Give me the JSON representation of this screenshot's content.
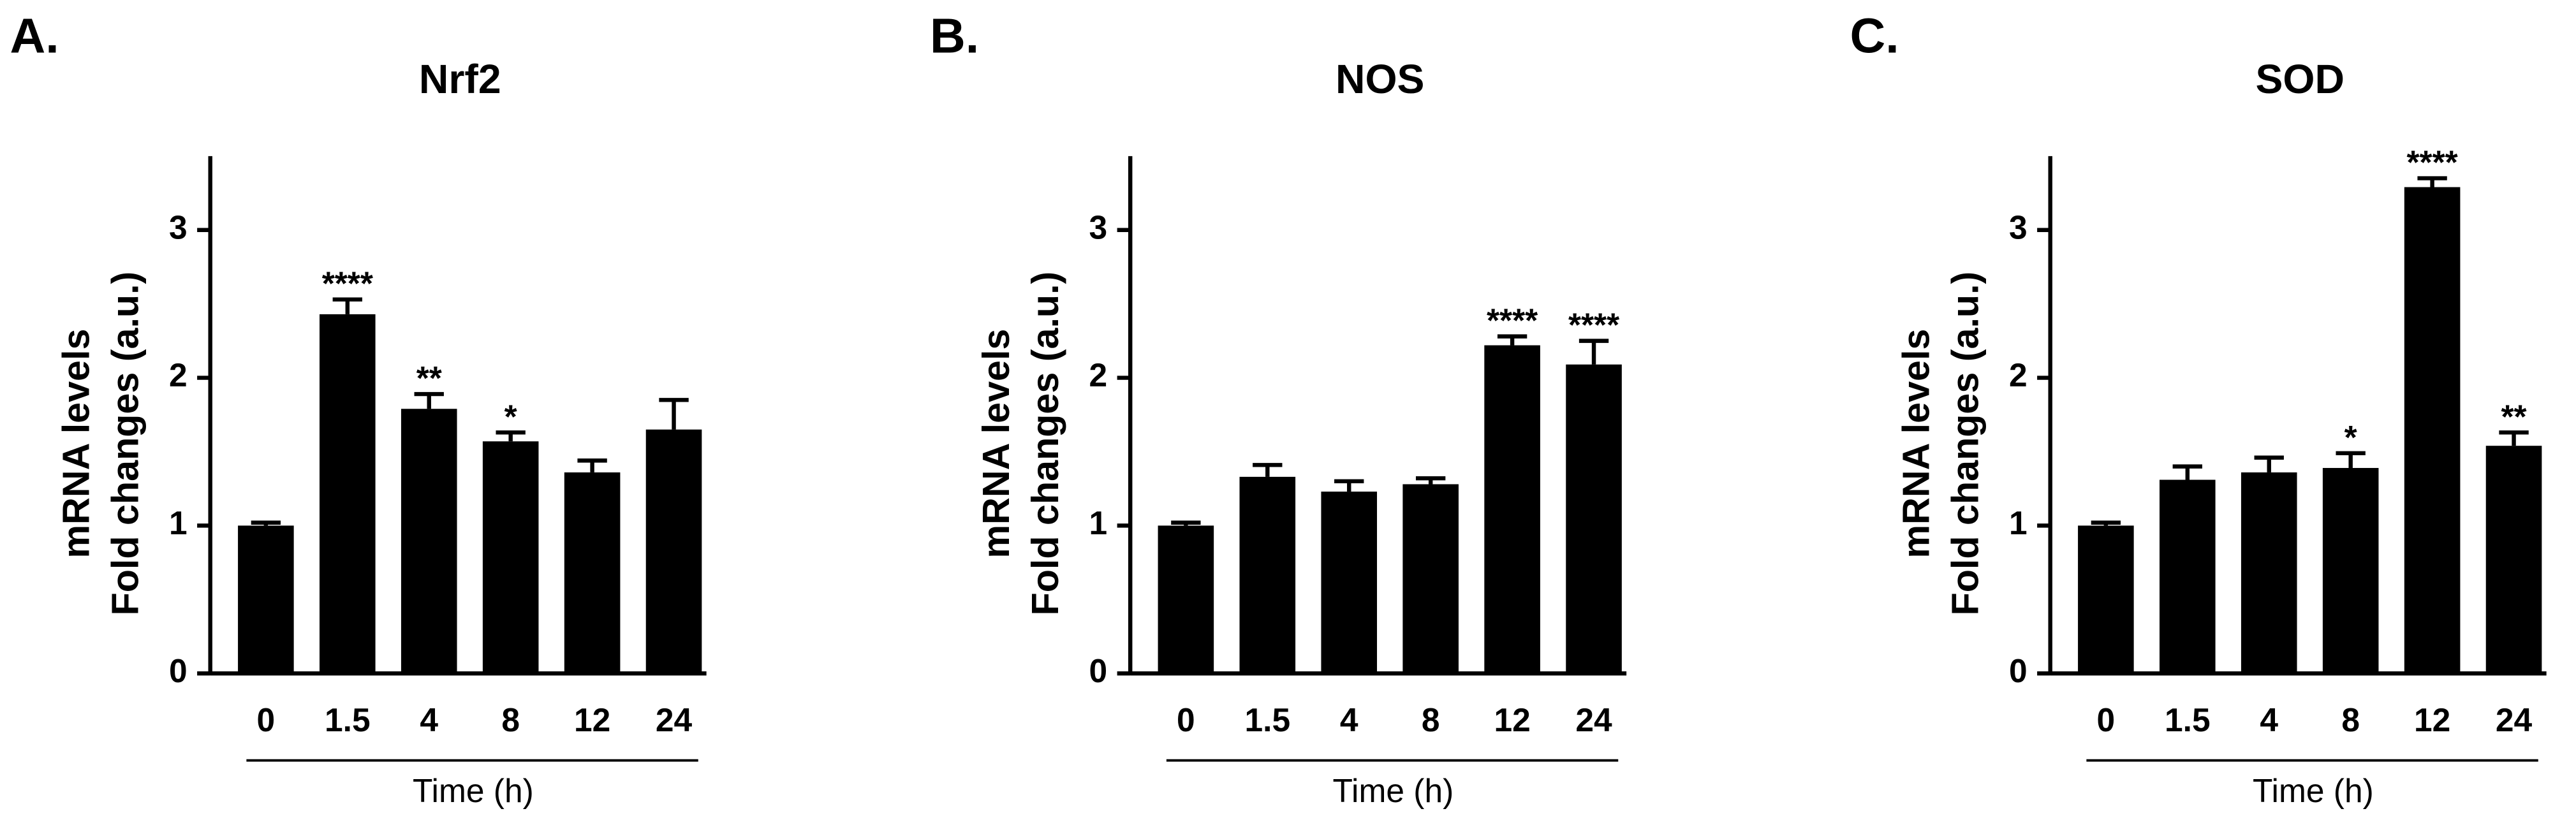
{
  "chart_data": [
    {
      "type": "bar",
      "panel": "A.",
      "title": "Nrf2",
      "y_label": [
        "mRNA levels",
        "Fold changes (a.u.)"
      ],
      "x_label": "Time (h)",
      "categories": [
        "0",
        "1.5",
        "4",
        "8",
        "12",
        "24"
      ],
      "values": [
        1.0,
        2.43,
        1.79,
        1.57,
        1.36,
        1.65
      ],
      "errors": [
        0.02,
        0.1,
        0.1,
        0.06,
        0.08,
        0.2
      ],
      "annotations": [
        null,
        "****",
        "**",
        "*",
        null,
        null
      ],
      "color": "#000000",
      "ylim": [
        0,
        3.5
      ],
      "yticks": [
        0,
        1,
        2,
        3
      ]
    },
    {
      "type": "bar",
      "panel": "B.",
      "title": "NOS",
      "y_label": [
        "mRNA levels",
        "Fold changes (a.u.)"
      ],
      "x_label": "Time (h)",
      "categories": [
        "0",
        "1.5",
        "4",
        "8",
        "12",
        "24"
      ],
      "values": [
        1.0,
        1.33,
        1.23,
        1.28,
        2.22,
        2.09
      ],
      "errors": [
        0.02,
        0.08,
        0.07,
        0.04,
        0.06,
        0.16
      ],
      "annotations": [
        null,
        null,
        null,
        null,
        "****",
        "****"
      ],
      "color": "#000000",
      "ylim": [
        0,
        3.5
      ],
      "yticks": [
        0,
        1,
        2,
        3
      ]
    },
    {
      "type": "bar",
      "panel": "C.",
      "title": "SOD",
      "y_label": [
        "mRNA levels",
        "Fold changes (a.u.)"
      ],
      "x_label": "Time (h)",
      "categories": [
        "0",
        "1.5",
        "4",
        "8",
        "12",
        "24"
      ],
      "values": [
        1.0,
        1.31,
        1.36,
        1.39,
        3.29,
        1.54
      ],
      "errors": [
        0.02,
        0.09,
        0.1,
        0.1,
        0.06,
        0.09
      ],
      "annotations": [
        null,
        null,
        null,
        "*",
        "****",
        "**"
      ],
      "color": "#000000",
      "ylim": [
        0,
        3.5
      ],
      "yticks": [
        0,
        1,
        2,
        3
      ]
    }
  ]
}
